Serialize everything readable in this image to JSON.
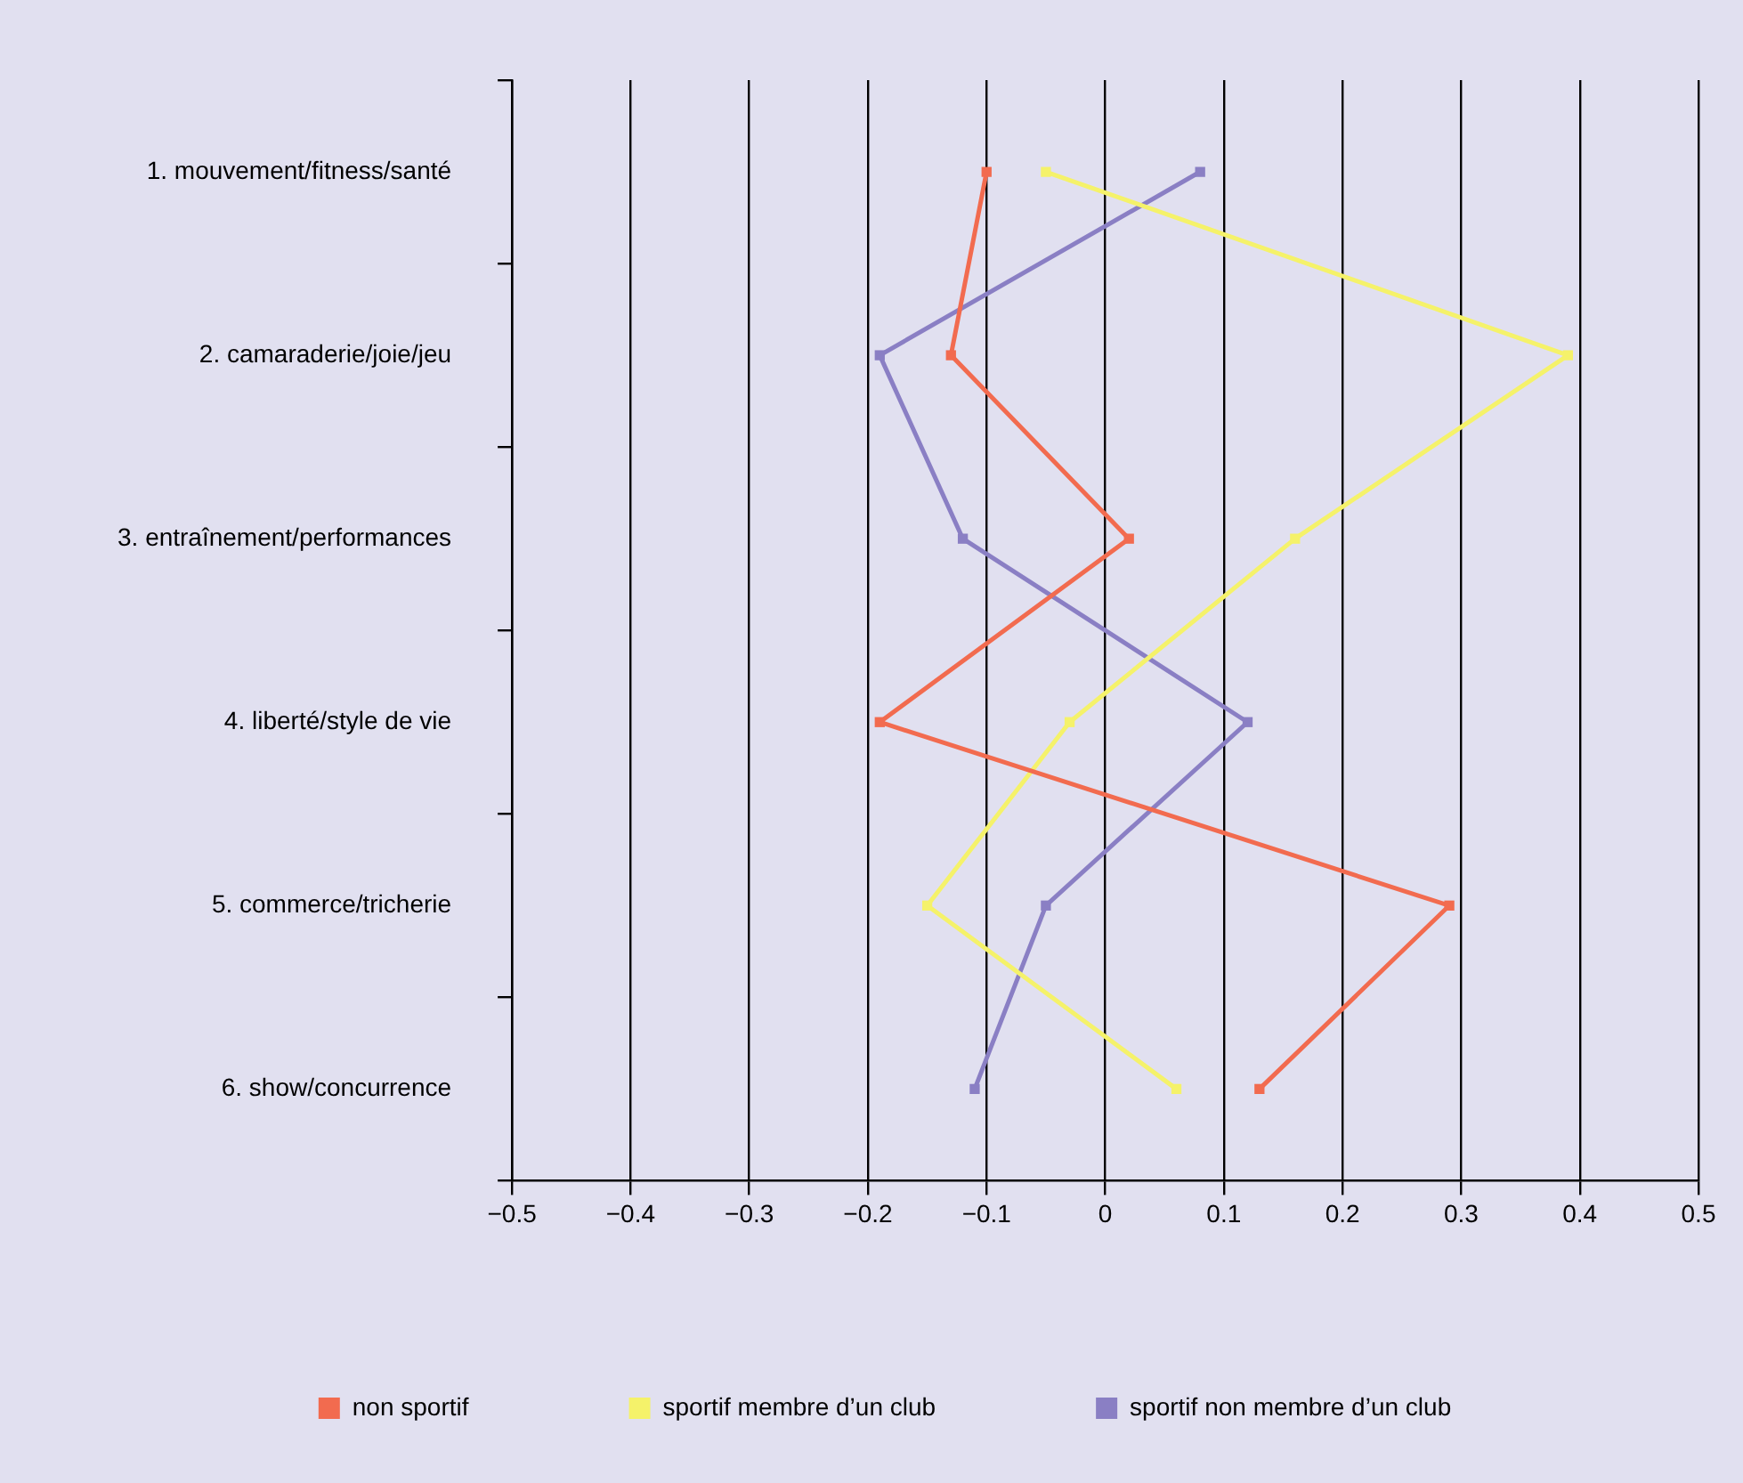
{
  "chart_data": {
    "type": "line",
    "orientation": "horizontal",
    "categories": [
      "1. mouvement/fitness/santé",
      "2. camaraderie/joie/jeu",
      "3. entraînement/performances",
      "4. liberté/style de vie",
      "5. commerce/tricherie",
      "6. show/concurrence"
    ],
    "series": [
      {
        "name": "non sportif",
        "color": "#f26b4f",
        "values": [
          -0.1,
          -0.13,
          0.02,
          -0.19,
          0.29,
          0.13
        ]
      },
      {
        "name": "sportif membre d’un club",
        "color": "#f5f26a",
        "values": [
          -0.05,
          0.39,
          0.16,
          -0.03,
          -0.15,
          0.06
        ]
      },
      {
        "name": "sportif non membre d’un club",
        "color": "#8a7fc4",
        "values": [
          0.08,
          -0.19,
          -0.12,
          0.12,
          -0.05,
          -0.11
        ]
      }
    ],
    "xlim": [
      -0.5,
      0.5
    ],
    "xticks": [
      {
        "value": -0.5,
        "label": "−0.5"
      },
      {
        "value": -0.4,
        "label": "−0.4"
      },
      {
        "value": -0.3,
        "label": "−0.3"
      },
      {
        "value": -0.2,
        "label": "−0.2"
      },
      {
        "value": -0.1,
        "label": "−0.1"
      },
      0,
      0.1,
      0.2,
      0.3,
      0.4,
      0.5
    ],
    "grid": "x",
    "legend": "bottom",
    "marker": "square",
    "line_style": "solid"
  }
}
